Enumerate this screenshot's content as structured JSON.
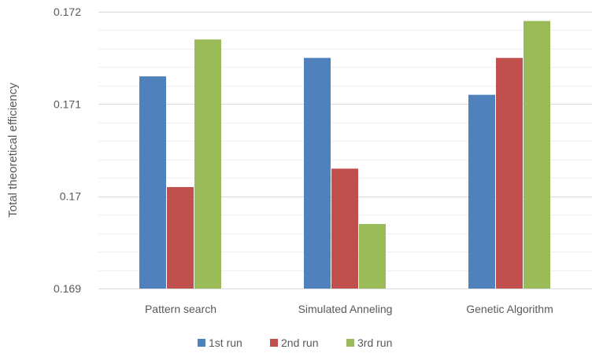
{
  "chart_data": {
    "type": "bar",
    "title": "",
    "xlabel": "",
    "ylabel": "Total theoretical efficiency",
    "categories": [
      "Pattern search",
      "Simulated Anneling",
      "Genetic Algorithm"
    ],
    "series": [
      {
        "name": "1st run",
        "color": "#4F81BD",
        "values": [
          0.1713,
          0.1715,
          0.1711
        ]
      },
      {
        "name": "2nd run",
        "color": "#C0504D",
        "values": [
          0.1701,
          0.1703,
          0.1715
        ]
      },
      {
        "name": "3rd run",
        "color": "#9BBB59",
        "values": [
          0.1717,
          0.1697,
          0.1719
        ]
      }
    ],
    "ylim": [
      0.169,
      0.172
    ],
    "y_ticks": [
      0.169,
      0.17,
      0.171,
      0.172
    ],
    "y_tick_labels": [
      "0.169",
      "0.17",
      "0.171",
      "0.172"
    ],
    "grid": true,
    "legend_position": "bottom"
  }
}
